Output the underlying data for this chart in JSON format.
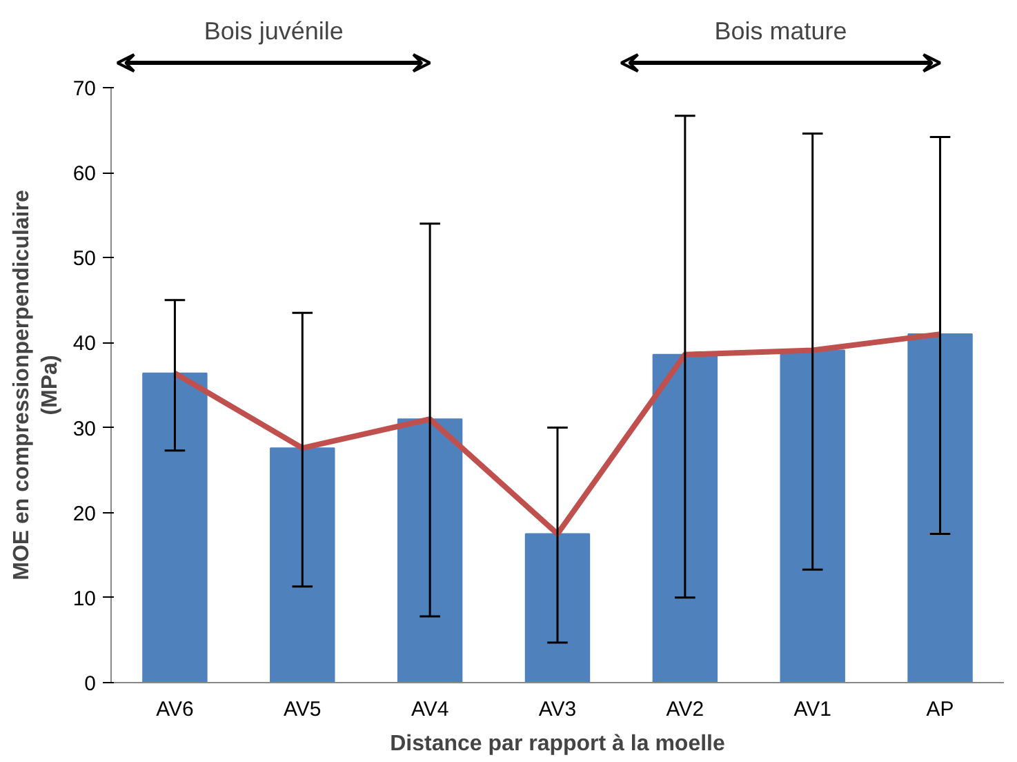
{
  "chart_data": {
    "type": "bar",
    "xlabel": "Distance par rapport à la moelle",
    "ylabel": "MOE en compressionperpendiculaire\n(MPa)",
    "categories": [
      "AV6",
      "AV5",
      "AV4",
      "AV3",
      "AV2",
      "AV1",
      "AP"
    ],
    "series": [
      {
        "color": "#4f81bd",
        "values": [
          36.4,
          27.6,
          31,
          17.5,
          38.6,
          39.1,
          41
        ],
        "errors": [
          [
            27.3,
            45
          ],
          [
            11.3,
            43.5
          ],
          [
            7.8,
            54
          ],
          [
            4.7,
            30
          ],
          [
            10,
            66.7
          ],
          [
            13.3,
            64.6
          ],
          [
            17.5,
            64.2
          ]
        ]
      },
      {
        "type": "line",
        "color": "#c0504d",
        "values": [
          36.4,
          27.6,
          31,
          17.5,
          38.6,
          39.1,
          41
        ]
      }
    ],
    "ylim": [
      0,
      70
    ],
    "yticks": [
      0,
      10,
      20,
      30,
      40,
      50,
      60,
      70
    ],
    "grid": false,
    "annotations": [
      "Bois juvénile",
      "Bois mature"
    ]
  }
}
